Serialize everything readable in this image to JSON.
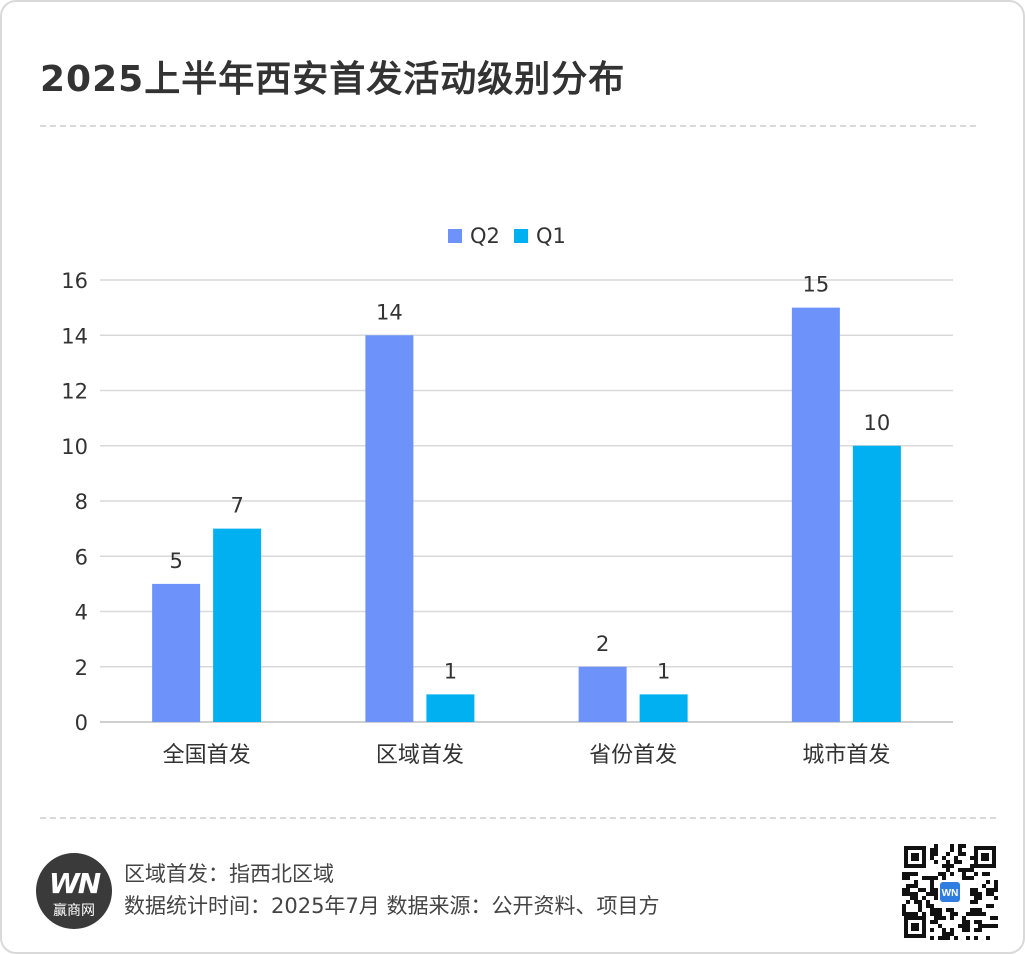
{
  "title": "2025上半年西安首发活动级别分布",
  "chart_data": {
    "type": "bar",
    "categories": [
      "全国首发",
      "区域首发",
      "省份首发",
      "城市首发"
    ],
    "series": [
      {
        "name": "Q2",
        "color": "#6d93fb",
        "values": [
          5,
          14,
          2,
          15
        ]
      },
      {
        "name": "Q1",
        "color": "#00b0f0",
        "values": [
          7,
          1,
          1,
          10
        ]
      }
    ],
    "ylim": [
      0,
      16
    ],
    "yticks": [
      0,
      2,
      4,
      6,
      8,
      10,
      12,
      14,
      16
    ],
    "grid": true,
    "legend_position": "top-center",
    "data_labels": true
  },
  "footer": {
    "logo_text": "WN",
    "logo_subtext": "赢商网",
    "note_line1": "区域首发：指西北区域",
    "note_line2": "数据统计时间：2025年7月 数据来源：公开资料、项目方"
  },
  "icons": {
    "logo": "winshang-logo",
    "qr": "qr-code-icon"
  }
}
